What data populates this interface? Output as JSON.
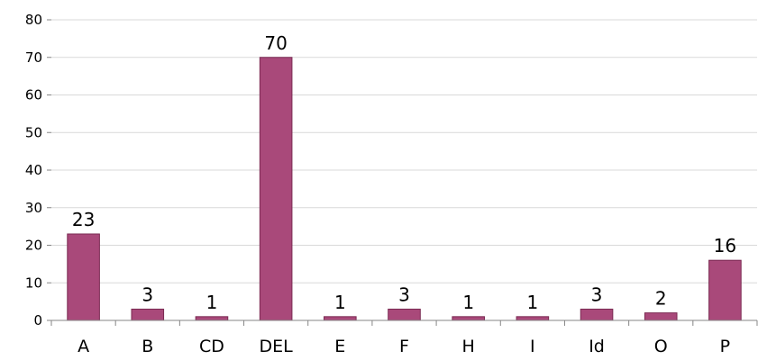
{
  "chart_data": {
    "type": "bar",
    "categories": [
      "A",
      "B",
      "CD",
      "DEL",
      "E",
      "F",
      "H",
      "I",
      "Id",
      "O",
      "P"
    ],
    "values": [
      23,
      3,
      1,
      70,
      1,
      3,
      1,
      1,
      3,
      2,
      16
    ],
    "data_labels": [
      "23",
      "3",
      "1",
      "70",
      "1",
      "3",
      "1",
      "1",
      "3",
      "2",
      "16"
    ],
    "yticks": [
      "0",
      "10",
      "20",
      "30",
      "40",
      "50",
      "60",
      "70",
      "80"
    ],
    "ylim": [
      0,
      80
    ],
    "grid": true,
    "legend": "none",
    "bar_color": "#a9497a",
    "title": "",
    "xlabel": "",
    "ylabel": ""
  }
}
